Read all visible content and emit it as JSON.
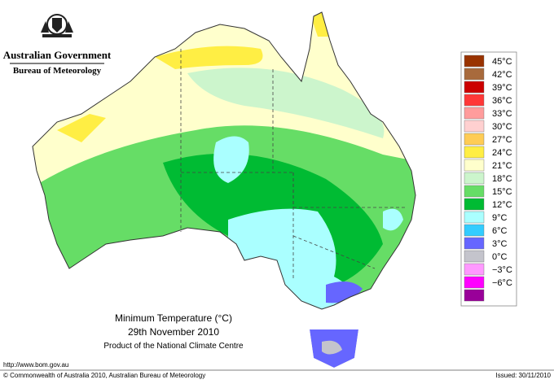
{
  "header": {
    "government": "Australian Government",
    "bureau": "Bureau of Meteorology"
  },
  "legend": {
    "items": [
      {
        "label": "45°C",
        "color": "#993300"
      },
      {
        "label": "42°C",
        "color": "#a86a3c"
      },
      {
        "label": "39°C",
        "color": "#cc0000"
      },
      {
        "label": "36°C",
        "color": "#ff3838"
      },
      {
        "label": "33°C",
        "color": "#ff9c9c"
      },
      {
        "label": "30°C",
        "color": "#ffd0d0"
      },
      {
        "label": "27°C",
        "color": "#ffcc55"
      },
      {
        "label": "24°C",
        "color": "#ffee44"
      },
      {
        "label": "21°C",
        "color": "#ffffcc"
      },
      {
        "label": "18°C",
        "color": "#ccf5cc"
      },
      {
        "label": "15°C",
        "color": "#66dd66"
      },
      {
        "label": "12°C",
        "color": "#00bb33"
      },
      {
        "label": "9°C",
        "color": "#aaffff"
      },
      {
        "label": "6°C",
        "color": "#33ccff"
      },
      {
        "label": "3°C",
        "color": "#6666ff"
      },
      {
        "label": "0°C",
        "color": "#c4c4cc"
      },
      {
        "label": "−3°C",
        "color": "#ff99ff"
      },
      {
        "label": "−6°C",
        "color": "#ff00ff"
      },
      {
        "label": "",
        "color": "#990099"
      }
    ]
  },
  "caption": {
    "title": "Minimum Temperature (°C)",
    "date": "29th November 2010",
    "product": "Product of the National Climate Centre"
  },
  "footer": {
    "url": "http://www.bom.gov.au",
    "copyright": "© Commonwealth of Australia 2010, Australian Bureau of Meteorology",
    "issued": "Issued: 30/11/2010"
  }
}
